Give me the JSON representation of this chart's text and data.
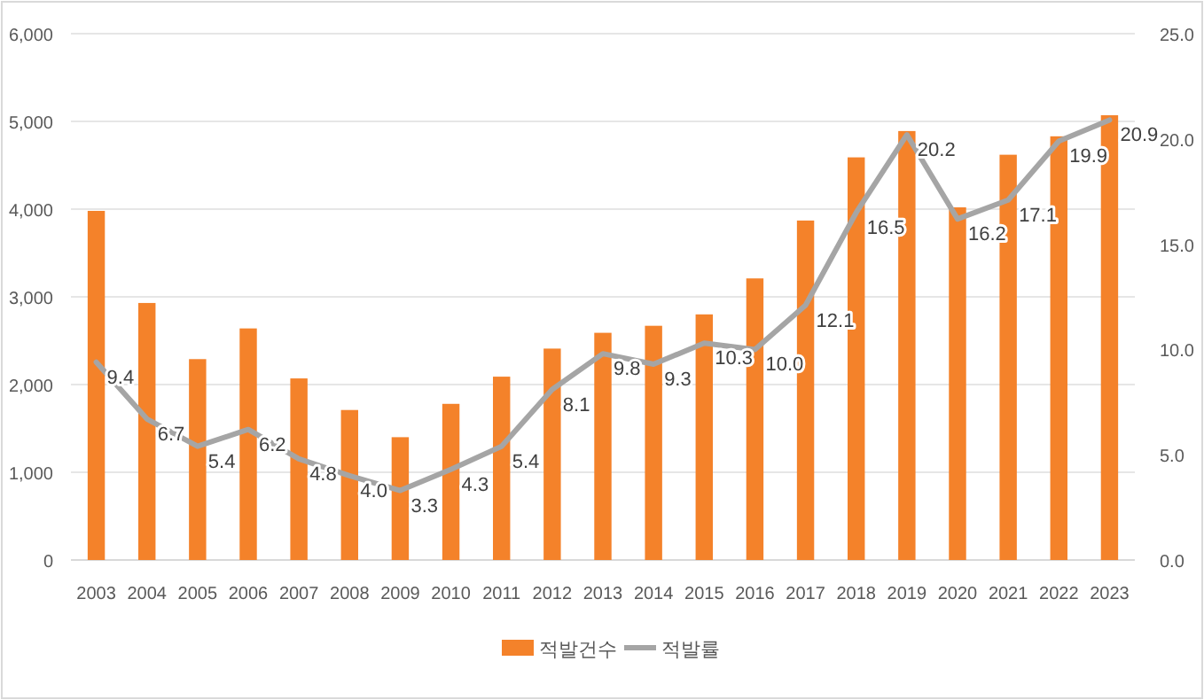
{
  "chart_data": {
    "type": "bar",
    "categories": [
      "2003",
      "2004",
      "2005",
      "2006",
      "2007",
      "2008",
      "2009",
      "2010",
      "2011",
      "2012",
      "2013",
      "2014",
      "2015",
      "2016",
      "2017",
      "2018",
      "2019",
      "2020",
      "2021",
      "2022",
      "2023"
    ],
    "series": [
      {
        "name": "적발건수",
        "color": "#f4822a",
        "values": [
          3980,
          2930,
          2290,
          2640,
          2070,
          1710,
          1400,
          1780,
          2090,
          2410,
          2590,
          2670,
          2800,
          3210,
          3870,
          4590,
          4890,
          4020,
          4620,
          4830,
          5070
        ]
      },
      {
        "name": "적발률",
        "type": "line",
        "axis": "y2",
        "color": "#a5a5a5",
        "values": [
          9.4,
          6.7,
          5.4,
          6.2,
          4.8,
          4.0,
          3.3,
          4.3,
          5.4,
          8.1,
          9.8,
          9.3,
          10.3,
          10.0,
          12.1,
          16.5,
          20.2,
          16.2,
          17.1,
          19.9,
          20.9
        ],
        "value_labels": [
          "9.4",
          "6.7",
          "5.4",
          "6.2",
          "4.8",
          "4.0",
          "3.3",
          "4.3",
          "5.4",
          "8.1",
          "9.8",
          "9.3",
          "10.3",
          "10.0",
          "12.1",
          "16.5",
          "20.2",
          "16.2",
          "17.1",
          "19.9",
          "20.9"
        ]
      }
    ],
    "ylim": [
      0,
      6000
    ],
    "yticks": [
      0,
      {
        "value": 1000,
        "label": "1,000"
      },
      {
        "value": 2000,
        "label": "2,000"
      },
      {
        "value": 3000,
        "label": "3,000"
      },
      {
        "value": 4000,
        "label": "4,000"
      },
      {
        "value": 5000,
        "label": "5,000"
      },
      {
        "value": 6000,
        "label": "6,000"
      }
    ],
    "y2lim": [
      0,
      25
    ],
    "y2ticks": [
      {
        "value": 0,
        "label": "0.0"
      },
      {
        "value": 5,
        "label": "5.0"
      },
      {
        "value": 10,
        "label": "10.0"
      },
      {
        "value": 15,
        "label": "15.0"
      },
      {
        "value": 20,
        "label": "20.0"
      },
      {
        "value": 25,
        "label": "25.0"
      }
    ],
    "grid": "y",
    "legend": "bottom",
    "marker": "none",
    "line_style": "solid"
  }
}
